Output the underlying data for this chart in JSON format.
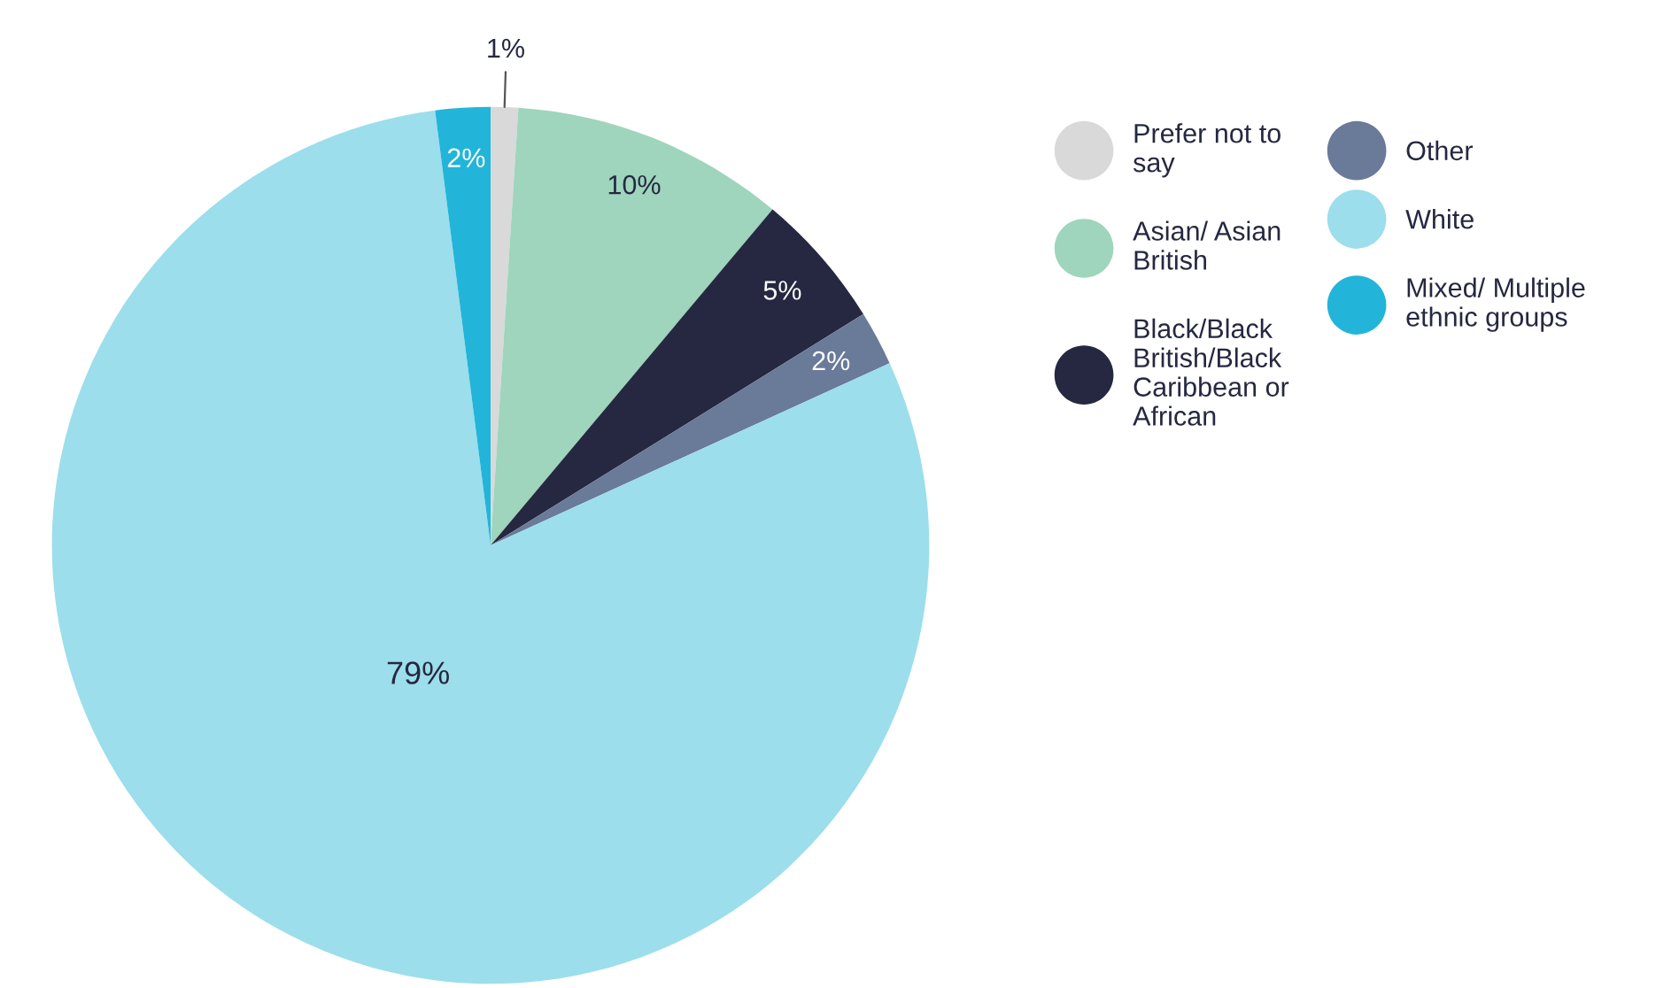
{
  "chart_data": {
    "type": "pie",
    "categories": [
      "Prefer not to say",
      "Asian/ Asian British",
      "Black/Black British/Black Caribbean or African",
      "Other",
      "White",
      "Mixed/ Multiple ethnic groups"
    ],
    "values": [
      1,
      10,
      5,
      2,
      79,
      2
    ],
    "colors": [
      "#d9d9d9",
      "#9ed5bc",
      "#252840",
      "#6a7a99",
      "#9cdeeb",
      "#22b5d9"
    ],
    "value_labels": [
      "1%",
      "10%",
      "5%",
      "2%",
      "79%",
      "2%"
    ],
    "legend": "right"
  }
}
